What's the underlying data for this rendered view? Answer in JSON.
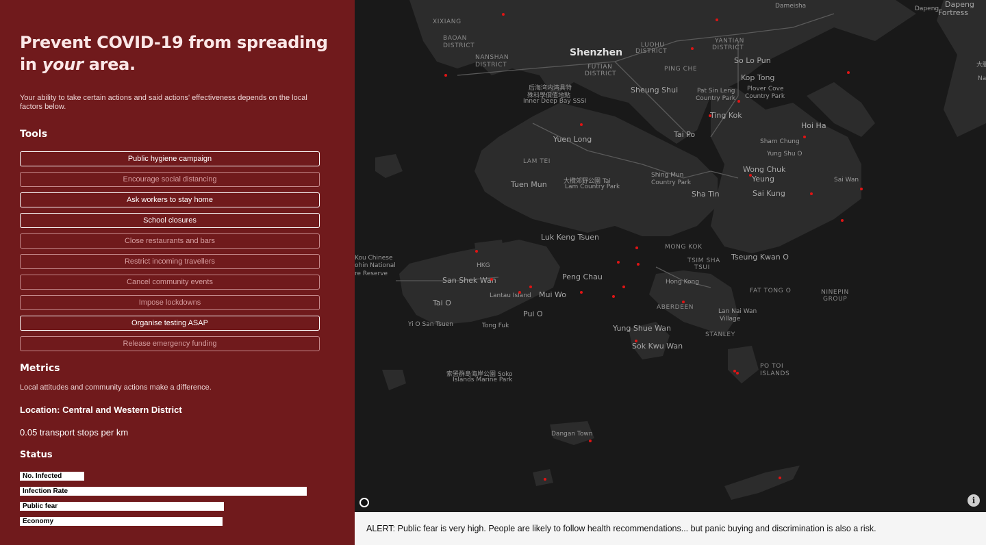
{
  "sidebar": {
    "headline_part1": "Prevent COVID-19 from spreading in",
    "headline_em": "your",
    "headline_part2": "area.",
    "intro": "Your ability to take certain actions and said actions' effectiveness depends on the local factors below.",
    "tools_heading": "Tools",
    "tools": [
      {
        "label": "Public hygiene campaign",
        "active": true
      },
      {
        "label": "Encourage social distancing",
        "active": false
      },
      {
        "label": "Ask workers to stay home",
        "active": true
      },
      {
        "label": "School closures",
        "active": true
      },
      {
        "label": "Close restaurants and bars",
        "active": false
      },
      {
        "label": "Restrict incoming travellers",
        "active": false
      },
      {
        "label": "Cancel community events",
        "active": false
      },
      {
        "label": "Impose lockdowns",
        "active": false
      },
      {
        "label": "Organise testing ASAP",
        "active": true
      },
      {
        "label": "Release emergency funding",
        "active": false
      }
    ],
    "metrics_heading": "Metrics",
    "metrics_sub": "Local attitudes and community actions make a difference.",
    "location": "Location: Central and Western District",
    "transport": "0.05 transport stops per km",
    "status_heading": "Status",
    "status": [
      {
        "label": "No. Infected",
        "level": 0.215
      },
      {
        "label": "Infection Rate",
        "level": 0.957
      },
      {
        "label": "Public fear",
        "level": 0.68
      },
      {
        "label": "Economy",
        "level": 0.676
      }
    ]
  },
  "map": {
    "labels": [
      {
        "text": "Shenzhen",
        "kind": "big"
      },
      {
        "text": "XIXIANG",
        "kind": "small"
      },
      {
        "text": "BAOAN",
        "kind": "small"
      },
      {
        "text": "DISTRICT",
        "kind": "small"
      },
      {
        "text": "NANSHAN",
        "kind": "small"
      },
      {
        "text": "DISTRICT",
        "kind": "small"
      },
      {
        "text": "FUTIAN",
        "kind": "small"
      },
      {
        "text": "DISTRICT",
        "kind": "small"
      },
      {
        "text": "LUOHU",
        "kind": "small"
      },
      {
        "text": "DISTRICT",
        "kind": "small"
      },
      {
        "text": "YANTIAN",
        "kind": "small"
      },
      {
        "text": "DISTRICT",
        "kind": "small"
      },
      {
        "text": "Dameisha",
        "kind": "tiny"
      },
      {
        "text": "Dapeng",
        "kind": "tiny"
      },
      {
        "text": "Dapeng",
        "kind": "normal"
      },
      {
        "text": "Fortress",
        "kind": "normal"
      },
      {
        "text": "So Lo Pun",
        "kind": "normal"
      },
      {
        "text": "Kop Tong",
        "kind": "normal"
      },
      {
        "text": "PING CHE",
        "kind": "small"
      },
      {
        "text": "Sheung Shui",
        "kind": "normal"
      },
      {
        "text": "Pat Sin Leng",
        "kind": "tiny"
      },
      {
        "text": "Country Park",
        "kind": "tiny"
      },
      {
        "text": "Plover Cove",
        "kind": "tiny"
      },
      {
        "text": "Country Park",
        "kind": "tiny"
      },
      {
        "text": "后海湾内湾具特",
        "kind": "tiny"
      },
      {
        "text": "殊科學價值地點",
        "kind": "tiny"
      },
      {
        "text": "Inner Deep Bay SSSI",
        "kind": "tiny"
      },
      {
        "text": "Ting Kok",
        "kind": "normal"
      },
      {
        "text": "Hoi Ha",
        "kind": "normal"
      },
      {
        "text": "Tai Po",
        "kind": "normal"
      },
      {
        "text": "Yuen Long",
        "kind": "normal"
      },
      {
        "text": "Sham Chung",
        "kind": "tiny"
      },
      {
        "text": "Yung Shu O",
        "kind": "tiny"
      },
      {
        "text": "LAM TEI",
        "kind": "small"
      },
      {
        "text": "Wong Chuk",
        "kind": "normal"
      },
      {
        "text": "Yeung",
        "kind": "normal"
      },
      {
        "text": "Tuen Mun",
        "kind": "normal"
      },
      {
        "text": "大欖郊野公園 Tai",
        "kind": "tiny"
      },
      {
        "text": "Lam Country Park",
        "kind": "tiny"
      },
      {
        "text": "Shing Mun",
        "kind": "tiny"
      },
      {
        "text": "Country Park",
        "kind": "tiny"
      },
      {
        "text": "Sai Wan",
        "kind": "tiny"
      },
      {
        "text": "Sha Tin",
        "kind": "normal"
      },
      {
        "text": "Sai Kung",
        "kind": "normal"
      },
      {
        "text": "Luk Keng Tsuen",
        "kind": "normal"
      },
      {
        "text": "MONG KOK",
        "kind": "small"
      },
      {
        "text": "Tseung Kwan O",
        "kind": "normal"
      },
      {
        "text": "Kou Chinese",
        "kind": "tiny"
      },
      {
        "text": "ohin National",
        "kind": "tiny"
      },
      {
        "text": "re Reserve",
        "kind": "tiny"
      },
      {
        "text": "HKG",
        "kind": "tiny"
      },
      {
        "text": "TSIM SHA",
        "kind": "small"
      },
      {
        "text": "TSUI",
        "kind": "small"
      },
      {
        "text": "Peng Chau",
        "kind": "normal"
      },
      {
        "text": "San Shek Wan",
        "kind": "normal"
      },
      {
        "text": "Hong Kong",
        "kind": "tiny"
      },
      {
        "text": "FAT TONG O",
        "kind": "small"
      },
      {
        "text": "NINEPIN",
        "kind": "small"
      },
      {
        "text": "GROUP",
        "kind": "small"
      },
      {
        "text": "Tai O",
        "kind": "normal"
      },
      {
        "text": "Lantau Island",
        "kind": "tiny"
      },
      {
        "text": "Mui Wo",
        "kind": "normal"
      },
      {
        "text": "ABERDEEN",
        "kind": "small"
      },
      {
        "text": "Lan Nai Wan",
        "kind": "tiny"
      },
      {
        "text": "Village",
        "kind": "tiny"
      },
      {
        "text": "Pui O",
        "kind": "normal"
      },
      {
        "text": "Yi O San Tsuen",
        "kind": "tiny"
      },
      {
        "text": "Tong Fuk",
        "kind": "tiny"
      },
      {
        "text": "Yung Shue Wan",
        "kind": "normal"
      },
      {
        "text": "STANLEY",
        "kind": "small"
      },
      {
        "text": "Sok Kwu Wan",
        "kind": "normal"
      },
      {
        "text": "PO TOI",
        "kind": "small"
      },
      {
        "text": "ISLANDS",
        "kind": "small"
      },
      {
        "text": "索罟群島海岸公園 Soko",
        "kind": "tiny"
      },
      {
        "text": "Islands Marine Park",
        "kind": "tiny"
      },
      {
        "text": "Dangan Town",
        "kind": "tiny"
      },
      {
        "text": "大鵬",
        "kind": "tiny"
      },
      {
        "text": "Na",
        "kind": "tiny"
      }
    ],
    "dot_color": "#e01414",
    "logo_icon": "mapbox-logo-icon",
    "info_icon_glyph": "i"
  },
  "alert": "ALERT: Public fear is very high. People are likely to follow health recommendations... but panic buying and discrimination is also a risk."
}
